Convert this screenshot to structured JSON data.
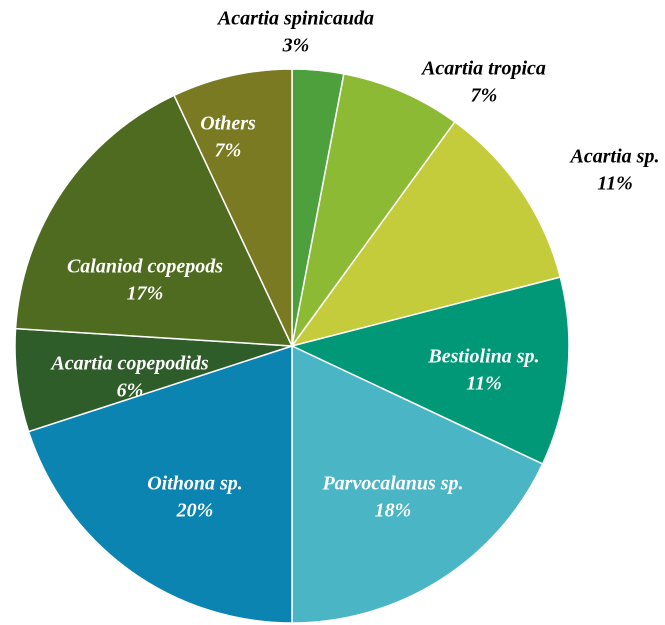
{
  "chart_data": {
    "type": "pie",
    "categories": [
      "Acartia spinicauda",
      "Acartia tropica",
      "Acartia sp.",
      "Bestiolina sp.",
      "Parvocalanus sp.",
      "Oithona sp.",
      "Acartia copepodids",
      "Calaniod copepods",
      "Others"
    ],
    "values": [
      3,
      7,
      11,
      11,
      18,
      20,
      6,
      17,
      7
    ],
    "value_labels": [
      "3%",
      "7%",
      "11%",
      "11%",
      "18%",
      "20%",
      "6%",
      "17%",
      "7%"
    ],
    "colors": [
      "#4ea03c",
      "#8cba34",
      "#c4cc3c",
      "#009877",
      "#4ab5c4",
      "#0b84b2",
      "#2f5d2a",
      "#4f6b20",
      "#7a7a22"
    ]
  }
}
